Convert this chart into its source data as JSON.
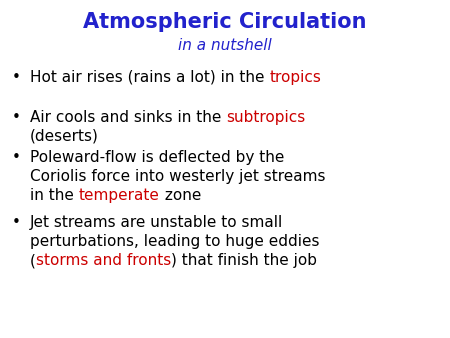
{
  "title": "Atmospheric Circulation",
  "subtitle": "in a nutshell",
  "title_color": "#2222CC",
  "subtitle_color": "#2222CC",
  "background_color": "#FFFFFF",
  "title_fontsize": 15,
  "subtitle_fontsize": 11,
  "bullet_fontsize": 11,
  "bullet_symbol": "•",
  "bullets": [
    {
      "lines": [
        [
          {
            "text": "Hot air rises (rains a lot) in the ",
            "color": "#000000"
          },
          {
            "text": "tropics",
            "color": "#CC0000"
          }
        ]
      ]
    },
    {
      "lines": [
        [
          {
            "text": "Air cools and sinks in the ",
            "color": "#000000"
          },
          {
            "text": "subtropics",
            "color": "#CC0000"
          }
        ],
        [
          {
            "text": "(deserts)",
            "color": "#000000"
          }
        ]
      ]
    },
    {
      "lines": [
        [
          {
            "text": "Poleward-flow is deflected by the",
            "color": "#000000"
          }
        ],
        [
          {
            "text": "Coriolis force into westerly jet streams",
            "color": "#000000"
          }
        ],
        [
          {
            "text": "in the ",
            "color": "#000000"
          },
          {
            "text": "temperate",
            "color": "#CC0000"
          },
          {
            "text": " zone",
            "color": "#000000"
          }
        ]
      ]
    },
    {
      "lines": [
        [
          {
            "text": "Jet streams are unstable to small",
            "color": "#000000"
          }
        ],
        [
          {
            "text": "perturbations, leading to huge eddies",
            "color": "#000000"
          }
        ],
        [
          {
            "text": "(",
            "color": "#000000"
          },
          {
            "text": "storms and fronts",
            "color": "#CC0000"
          },
          {
            "text": ") that finish the job",
            "color": "#000000"
          }
        ]
      ]
    }
  ]
}
